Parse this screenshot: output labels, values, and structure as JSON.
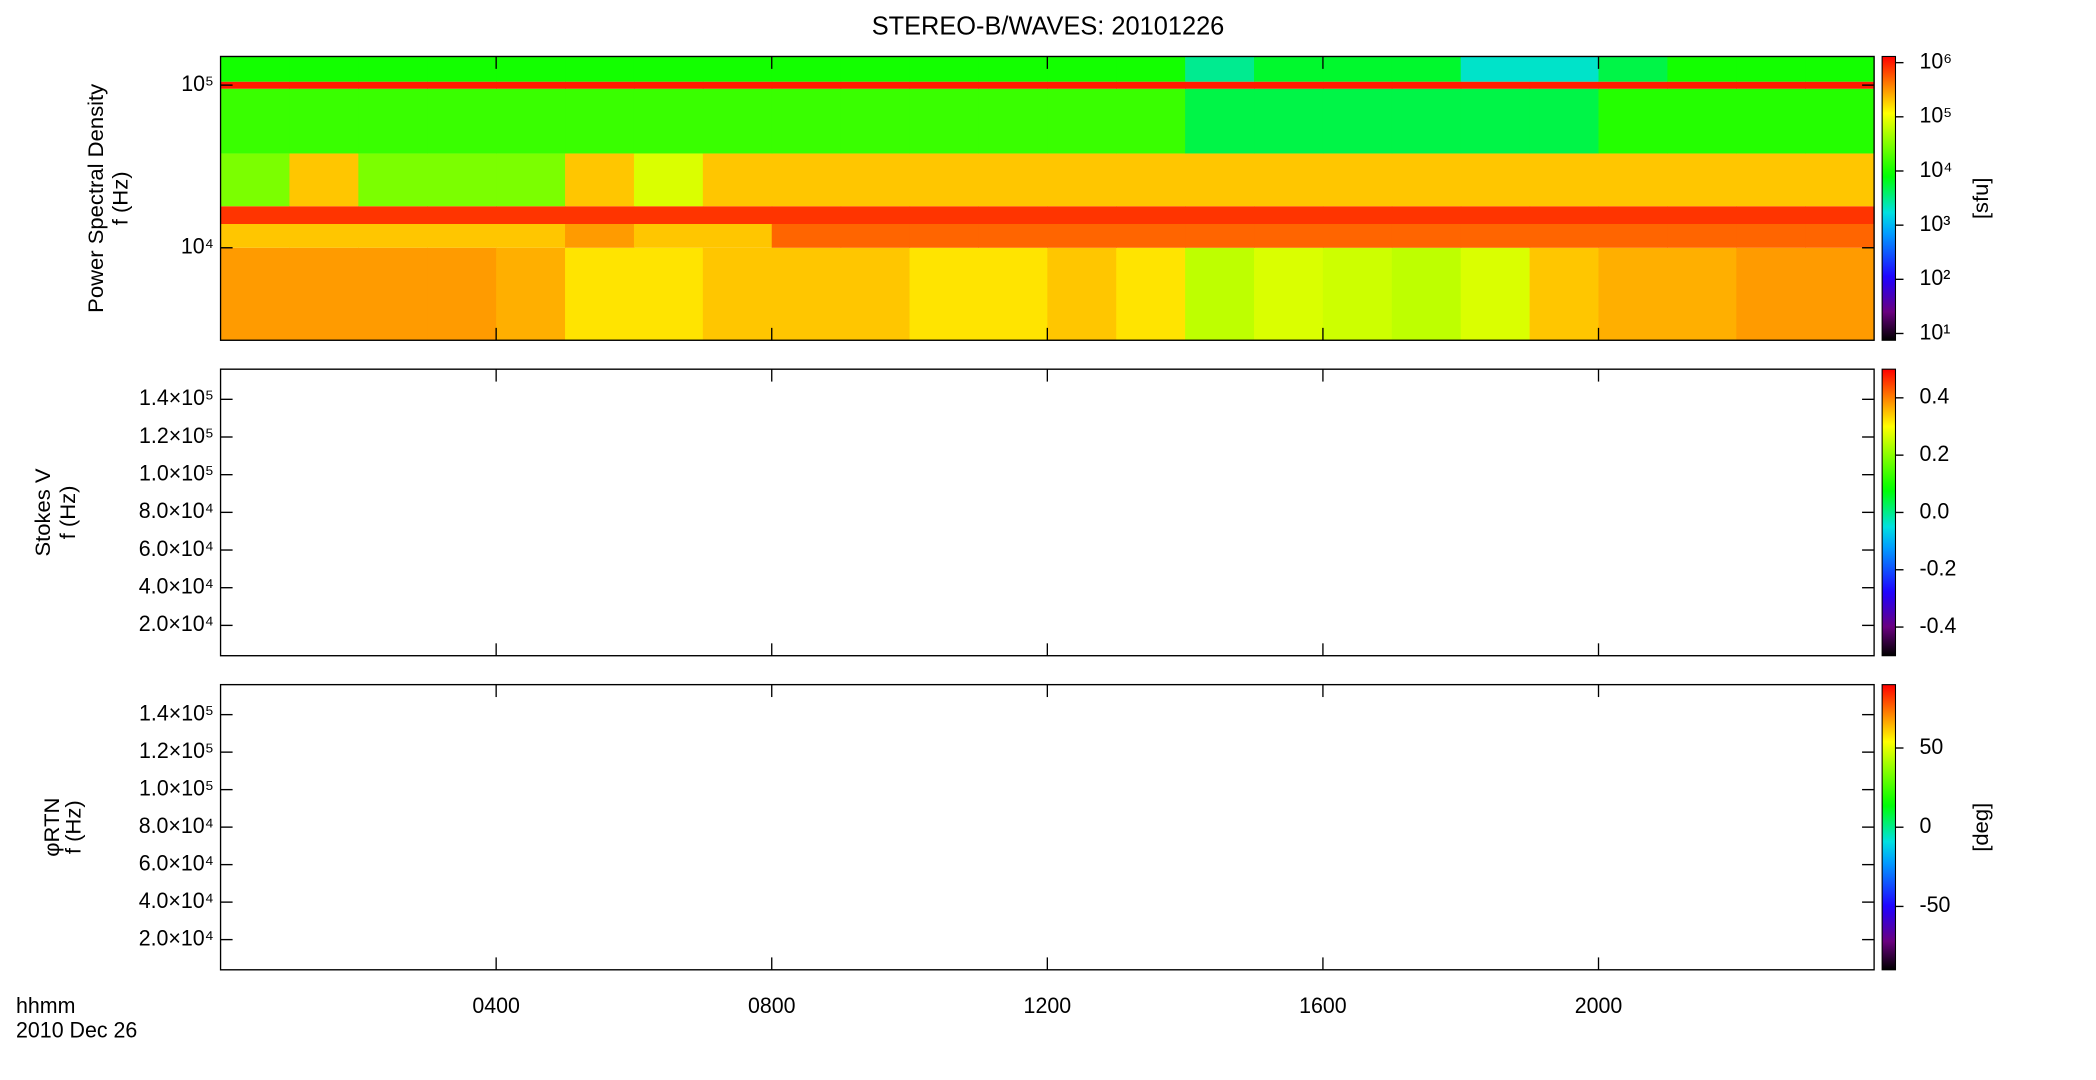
{
  "chart_data": [
    {
      "type": "heatmap",
      "title": "STEREO-B/WAVES: 20101226",
      "ylabel": [
        "Power Spectral Density",
        "f (Hz)"
      ],
      "xlim": [
        0,
        24
      ],
      "xticks": [
        4,
        8,
        12,
        16,
        20
      ],
      "ylog": true,
      "ylim": [
        2700,
        150000
      ],
      "yticks": [
        {
          "value": 10000,
          "label": "10⁴"
        },
        {
          "value": 100000,
          "label": "10⁵"
        }
      ],
      "xbins": [
        0,
        1,
        2,
        3,
        4,
        5,
        6,
        7,
        8,
        9,
        10,
        11,
        12,
        13,
        14,
        15,
        16,
        17,
        18,
        19,
        20,
        21,
        22,
        23,
        24
      ],
      "ybins": [
        2700,
        10000,
        14000,
        18000,
        38000,
        95000,
        105000,
        150000
      ],
      "values": [
        [
          300000,
          300000,
          300000,
          300000,
          250000,
          150000,
          150000,
          200000,
          200000,
          200000,
          150000,
          150000,
          200000,
          150000,
          60000,
          80000,
          70000,
          60000,
          80000,
          200000,
          250000,
          250000,
          300000,
          300000
        ],
        [
          200000,
          200000,
          200000,
          200000,
          200000,
          300000,
          200000,
          200000,
          500000,
          500000,
          500000,
          500000,
          500000,
          500000,
          500000,
          500000,
          500000,
          500000,
          500000,
          500000,
          500000,
          500000,
          500000,
          500000
        ],
        [
          800000,
          800000,
          800000,
          800000,
          800000,
          800000,
          800000,
          800000,
          800000,
          800000,
          800000,
          800000,
          800000,
          800000,
          800000,
          800000,
          800000,
          800000,
          800000,
          800000,
          800000,
          800000,
          800000,
          800000
        ],
        [
          30000,
          200000,
          30000,
          30000,
          30000,
          200000,
          80000,
          200000,
          200000,
          200000,
          200000,
          200000,
          200000,
          200000,
          200000,
          200000,
          200000,
          200000,
          200000,
          200000,
          200000,
          200000,
          200000,
          200000
        ],
        [
          15000,
          15000,
          15000,
          15000,
          15000,
          15000,
          15000,
          15000,
          15000,
          15000,
          15000,
          15000,
          15000,
          15000,
          5000,
          5000,
          5000,
          5000,
          5000,
          5000,
          12000,
          12000,
          12000,
          12000
        ],
        [
          1000000,
          1000000,
          1000000,
          1000000,
          1000000,
          1000000,
          1000000,
          1000000,
          1000000,
          1000000,
          1000000,
          1000000,
          1000000,
          1000000,
          1000000,
          1000000,
          1000000,
          1000000,
          1000000,
          1000000,
          1000000,
          1000000,
          1000000,
          1000000
        ],
        [
          10000,
          10000,
          10000,
          10000,
          10000,
          10000,
          10000,
          10000,
          10000,
          10000,
          10000,
          10000,
          10000,
          10000,
          3000,
          6000,
          6000,
          6000,
          2000,
          2000,
          5000,
          10000,
          10000,
          10000
        ]
      ],
      "colormap": "rainbow",
      "zlog": true,
      "zlim": [
        7.5,
        1300000
      ],
      "zticks": [
        {
          "value": 10,
          "label": "10¹"
        },
        {
          "value": 100,
          "label": "10²"
        },
        {
          "value": 1000,
          "label": "10³"
        },
        {
          "value": 10000,
          "label": "10⁴"
        },
        {
          "value": 100000,
          "label": "10⁵"
        },
        {
          "value": 1000000,
          "label": "10⁶"
        }
      ],
      "zlabel": "[sfu]"
    },
    {
      "type": "heatmap",
      "ylabel": [
        "Stokes V",
        "f (Hz)"
      ],
      "xlim": [
        0,
        24
      ],
      "xticks": [
        4,
        8,
        12,
        16,
        20
      ],
      "ylim": [
        3900,
        156000
      ],
      "yticks": [
        {
          "value": 20000,
          "label": "2.0×10⁴"
        },
        {
          "value": 40000,
          "label": "4.0×10⁴"
        },
        {
          "value": 60000,
          "label": "6.0×10⁴"
        },
        {
          "value": 80000,
          "label": "8.0×10⁴"
        },
        {
          "value": 100000,
          "label": "1.0×10⁵"
        },
        {
          "value": 120000,
          "label": "1.2×10⁵"
        },
        {
          "value": 140000,
          "label": "1.4×10⁵"
        }
      ],
      "colormap": "rainbow",
      "zlim": [
        -0.5,
        0.5
      ],
      "zticks": [
        -0.4,
        -0.2,
        {
          "value": 0,
          "label": "0.0"
        },
        0.2,
        0.4
      ]
    },
    {
      "type": "heatmap",
      "ylabel": [
        "φRTN",
        "f (Hz)"
      ],
      "xlim": [
        0,
        24
      ],
      "xticks": [
        {
          "value": 4,
          "label": "0400"
        },
        {
          "value": 8,
          "label": "0800"
        },
        {
          "value": 12,
          "label": "1200"
        },
        {
          "value": 16,
          "label": "1600"
        },
        {
          "value": 20,
          "label": "2000"
        }
      ],
      "xlabel": [
        "hhmm",
        "2010 Dec 26"
      ],
      "ylim": [
        3900,
        156000
      ],
      "yticks": [
        {
          "value": 20000,
          "label": "2.0×10⁴"
        },
        {
          "value": 40000,
          "label": "4.0×10⁴"
        },
        {
          "value": 60000,
          "label": "6.0×10⁴"
        },
        {
          "value": 80000,
          "label": "8.0×10⁴"
        },
        {
          "value": 100000,
          "label": "1.0×10⁵"
        },
        {
          "value": 120000,
          "label": "1.2×10⁵"
        },
        {
          "value": 140000,
          "label": "1.4×10⁵"
        }
      ],
      "colormap": "rainbow",
      "zlim": [
        -90,
        90
      ],
      "zticks": [
        -50,
        0,
        50
      ],
      "zlabel": "[deg]"
    }
  ]
}
